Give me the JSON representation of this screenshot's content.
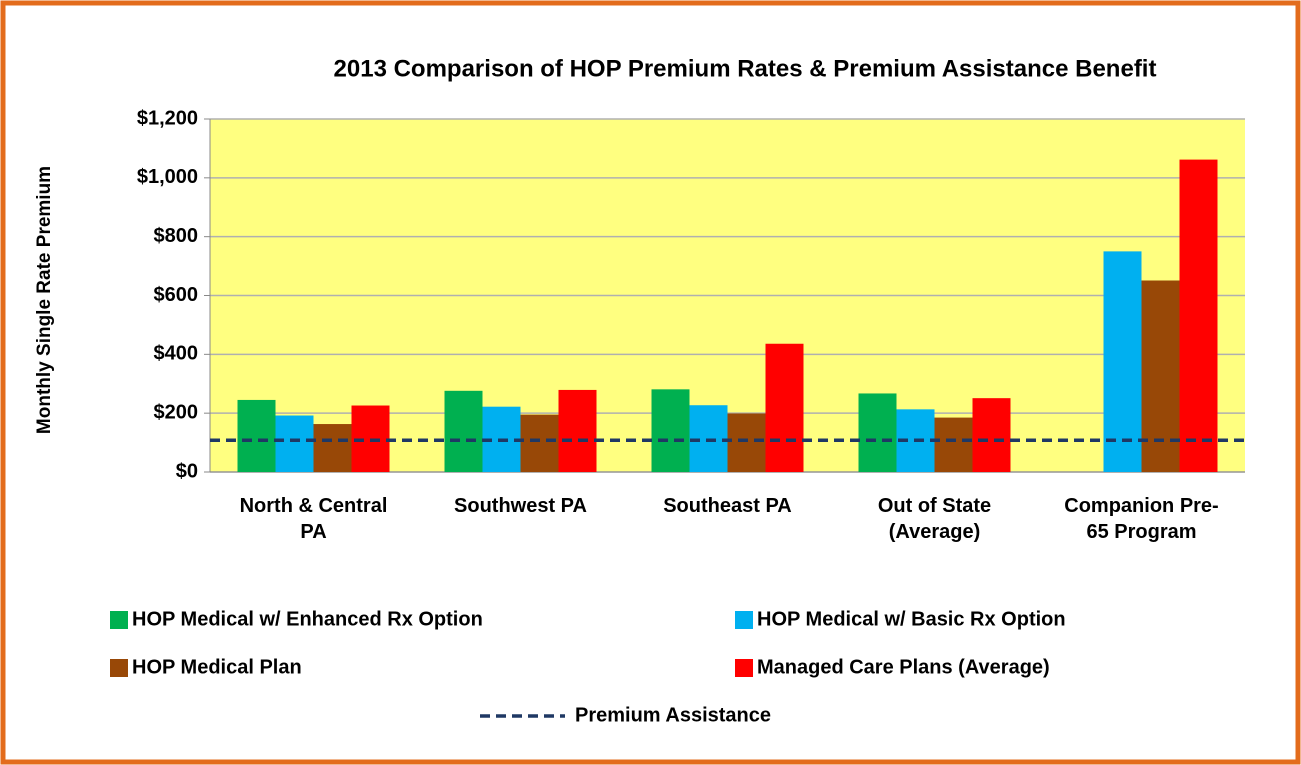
{
  "chart_data": {
    "type": "bar",
    "title": "2013 Comparison of HOP Premium Rates & Premium Assistance Benefit",
    "y_label": "Monthly Single Rate Premium",
    "categories": [
      "North & Central PA",
      "Southwest PA",
      "Southeast PA",
      "Out of State (Average)",
      "Companion Pre-65 Program"
    ],
    "series": [
      {
        "name": "HOP Medical w/ Enhanced Rx Option",
        "color": "#00b050",
        "values": [
          245,
          276,
          281,
          267,
          null
        ]
      },
      {
        "name": "HOP Medical w/ Basic Rx Option",
        "color": "#00b0f0",
        "values": [
          192,
          222,
          227,
          213,
          750
        ]
      },
      {
        "name": "HOP Medical Plan",
        "color": "#984807",
        "values": [
          163,
          195,
          199,
          185,
          651
        ]
      },
      {
        "name": "Managed Care Plans (Average)",
        "color": "#ff0000",
        "values": [
          226,
          279,
          436,
          251,
          1062
        ]
      }
    ],
    "reference_line": {
      "name": "Premium Assistance",
      "value": 108,
      "color": "#1f3864",
      "style": "dashed"
    },
    "ylim": [
      0,
      1200
    ],
    "yticks": [
      {
        "value": 0,
        "label": "$0"
      },
      {
        "value": 200,
        "label": "$200"
      },
      {
        "value": 400,
        "label": "$400"
      },
      {
        "value": 600,
        "label": "$600"
      },
      {
        "value": 800,
        "label": "$800"
      },
      {
        "value": 1000,
        "label": "$1,000"
      },
      {
        "value": 1200,
        "label": "$1,200"
      }
    ],
    "grid": true,
    "plot_background": "#ffff80",
    "legend": "bottom"
  }
}
